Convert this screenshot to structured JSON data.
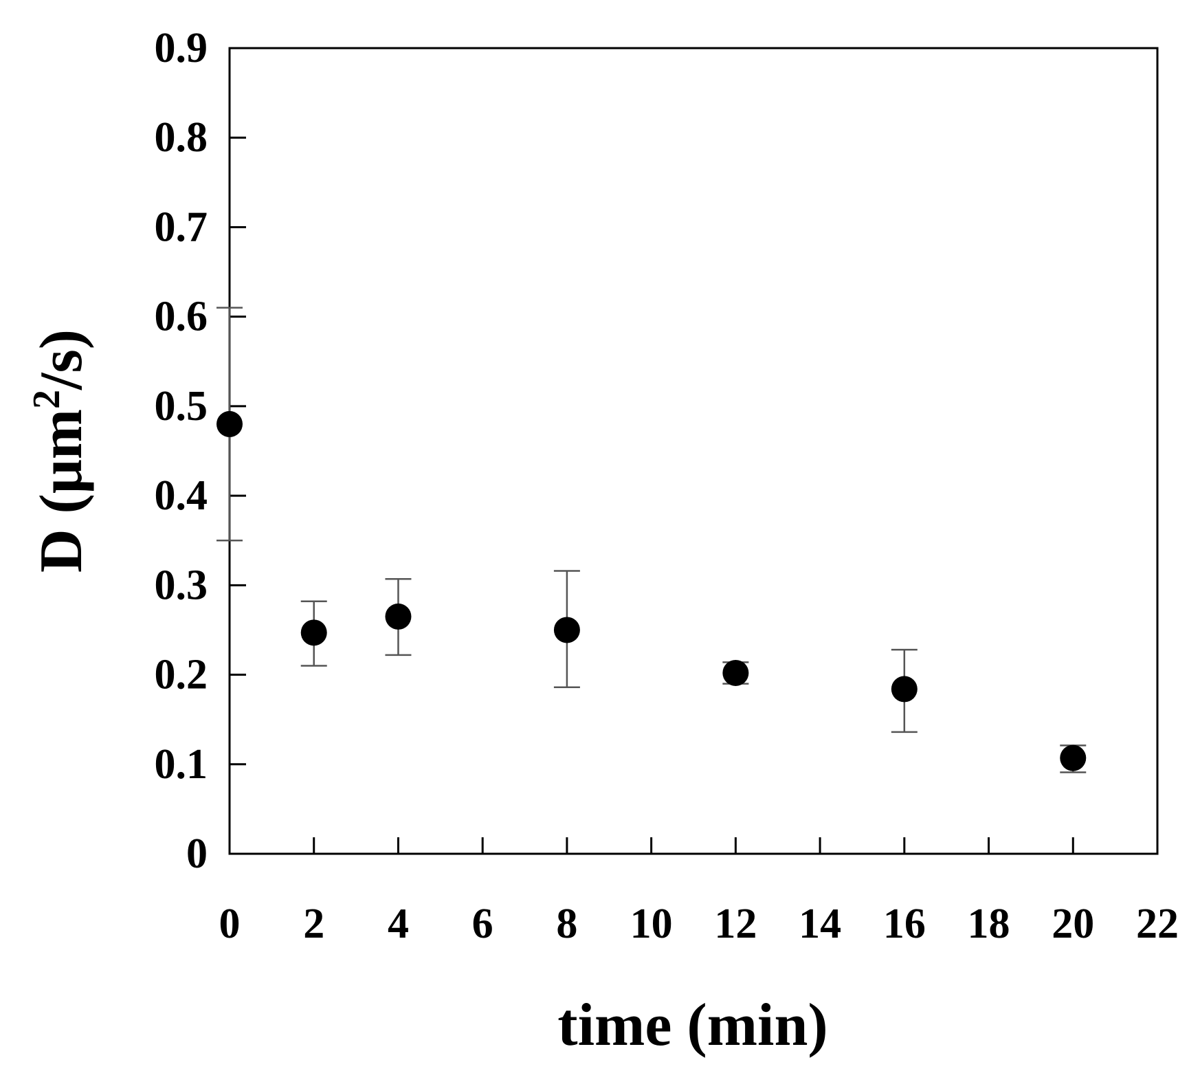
{
  "chart_data": {
    "type": "scatter",
    "xlabel": "time (min)",
    "ylabel": {
      "prefix": "D (μm",
      "superscript": "2",
      "suffix": "/s)"
    },
    "xlim": [
      0,
      22
    ],
    "ylim": [
      0,
      0.9
    ],
    "x_ticks": [
      0,
      2,
      4,
      6,
      8,
      10,
      12,
      14,
      16,
      18,
      20,
      22
    ],
    "x_tick_labels": [
      "0",
      "2",
      "4",
      "6",
      "8",
      "10",
      "12",
      "14",
      "16",
      "18",
      "20",
      "22"
    ],
    "y_ticks": [
      0,
      0.1,
      0.2,
      0.3,
      0.4,
      0.5,
      0.6,
      0.7,
      0.8,
      0.9
    ],
    "y_tick_labels": [
      "0",
      "0.1",
      "0.2",
      "0.3",
      "0.4",
      "0.5",
      "0.6",
      "0.7",
      "0.8",
      "0.9"
    ],
    "grid": false,
    "marker_color": "#000000",
    "errorbar_color": "#555555",
    "series": [
      {
        "points": [
          {
            "x": 0,
            "y": 0.48,
            "err_low": 0.13,
            "err_high": 0.13
          },
          {
            "x": 2,
            "y": 0.247,
            "err_low": 0.037,
            "err_high": 0.035
          },
          {
            "x": 4,
            "y": 0.265,
            "err_low": 0.043,
            "err_high": 0.042
          },
          {
            "x": 8,
            "y": 0.25,
            "err_low": 0.064,
            "err_high": 0.066
          },
          {
            "x": 12,
            "y": 0.202,
            "err_low": 0.012,
            "err_high": 0.012
          },
          {
            "x": 16,
            "y": 0.184,
            "err_low": 0.048,
            "err_high": 0.044
          },
          {
            "x": 20,
            "y": 0.107,
            "err_low": 0.016,
            "err_high": 0.014
          }
        ]
      }
    ]
  }
}
